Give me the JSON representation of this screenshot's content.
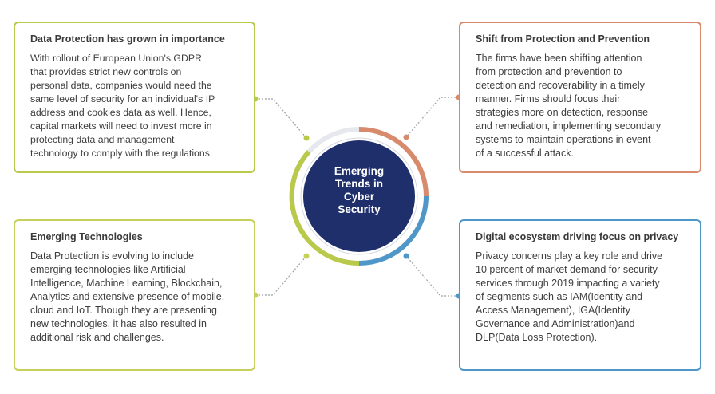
{
  "center": {
    "lines": [
      "Emerging",
      "Trends in",
      "Cyber",
      "Security"
    ]
  },
  "cards": {
    "top_left": {
      "title": "Data Protection has grown in importance",
      "lines": [
        "With rollout of European Union's GDPR",
        "that provides strict new controls on",
        "personal data, companies would need the",
        "same level of security for an individual's IP",
        "address and cookies data as well. Hence,",
        "capital markets will need to invest more in",
        "protecting data and management",
        "technology to comply with the regulations."
      ]
    },
    "top_right": {
      "title": "Shift from Protection and Prevention",
      "lines": [
        "The firms have been shifting attention",
        "from protection and prevention to",
        "detection and recoverability in a timely",
        "manner. Firms should focus their",
        "strategies more on detection, response",
        "and remediation, implementing secondary",
        "systems to maintain operations in event",
        "of a successful attack."
      ]
    },
    "bottom_left": {
      "title": "Emerging Technologies",
      "lines": [
        "Data Protection is evolving to include",
        "emerging technologies like Artificial",
        "Intelligence, Machine Learning, Blockchain,",
        "Analytics and extensive presence of mobile,",
        "cloud and IoT. Though they are presenting",
        "new technologies, it has also resulted in",
        "additional risk and challenges."
      ]
    },
    "bottom_right": {
      "title": "Digital ecosystem driving focus on privacy",
      "lines": [
        "Privacy concerns play a key role and drive",
        "10 percent of market demand for security",
        "services through 2019 impacting a variety",
        "of segments such as IAM(Identity and",
        "Access Management), IGA(Identity",
        "Governance and Administration)and",
        "DLP(Data Loss Protection)."
      ]
    }
  },
  "colors": {
    "navy": "#1f2f6b",
    "green": "#b9c94a",
    "orange": "#d88a6c",
    "blue": "#4f97c9",
    "ring_bg": "#e6e8ee",
    "connector": "#9aa0a6"
  }
}
